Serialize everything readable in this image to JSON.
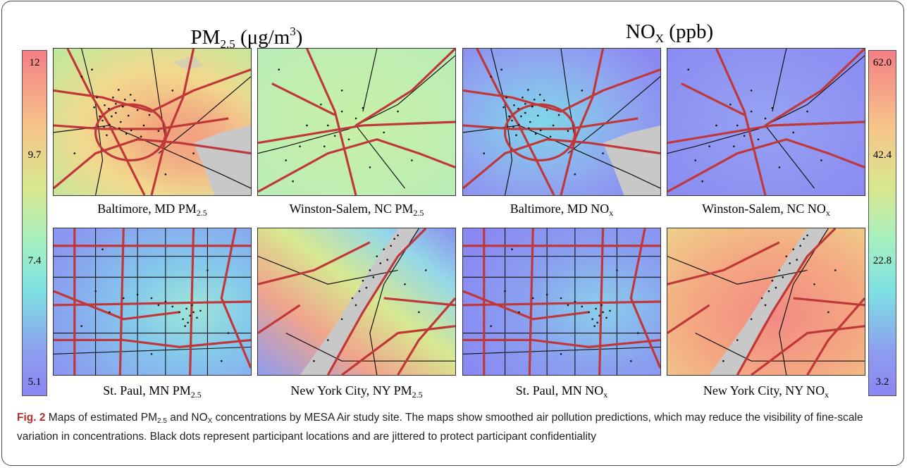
{
  "headings": {
    "pm": {
      "main": "PM",
      "sub": "2.5",
      "unit_open": " (μg/m",
      "unit_sup": "3",
      "unit_close": ")"
    },
    "nox": {
      "main": "NO",
      "sub": "X",
      "unit": " (ppb)"
    }
  },
  "colorbars": {
    "pm25": {
      "ticks": [
        "12",
        "9.7",
        "7.4",
        "5.1"
      ]
    },
    "nox": {
      "ticks": [
        "62.0",
        "42.4",
        "22.8",
        "3.2"
      ]
    }
  },
  "colors": {
    "road": "#c0373a",
    "street": "#111111",
    "participant": "#111111",
    "water": "#c8c8c8",
    "figure_label": "#b0302c"
  },
  "maps": [
    {
      "city": "Baltimore, MD",
      "pollutant": "PM",
      "sub": "2.5",
      "level": "high"
    },
    {
      "city": "Winston-Salem, NC",
      "pollutant": "PM",
      "sub": "2.5",
      "level": "mid"
    },
    {
      "city": "Baltimore, MD",
      "pollutant": "NO",
      "sub": "x",
      "level": "low"
    },
    {
      "city": "Winston-Salem, NC",
      "pollutant": "NO",
      "sub": "x",
      "level": "lowest"
    },
    {
      "city": "St. Paul, MN",
      "pollutant": "PM",
      "sub": "2.5",
      "level": "low"
    },
    {
      "city": "New York City, NY",
      "pollutant": "PM",
      "sub": "2.5",
      "level": "mixed"
    },
    {
      "city": "St. Paul, MN",
      "pollutant": "NO",
      "sub": "x",
      "level": "low"
    },
    {
      "city": "New York City, NY",
      "pollutant": "NO",
      "sub": "x",
      "level": "highest"
    }
  ],
  "caption": {
    "label": "Fig. 2",
    "t1": " Maps of estimated PM",
    "s1": "2.5",
    "t2": " and NO",
    "s2": "X",
    "t3": " concentrations by MESA Air study site. The maps show smoothed air pollution predictions, which may reduce the visibility of fine-scale variation in concentrations. Black dots represent participant locations and are jittered to protect participant confidentiality"
  }
}
